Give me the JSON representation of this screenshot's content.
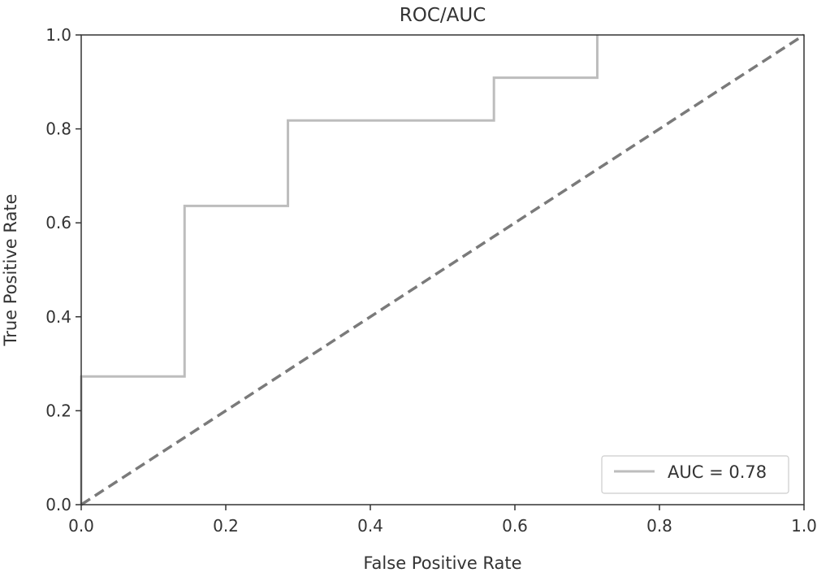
{
  "chart_data": {
    "type": "line",
    "title": "ROC/AUC",
    "xlabel": "False Positive Rate",
    "ylabel": "True Positive Rate",
    "xlim": [
      0,
      1
    ],
    "ylim": [
      0,
      1
    ],
    "xticks": [
      "0.0",
      "0.2",
      "0.4",
      "0.6",
      "0.8",
      "1.0"
    ],
    "yticks": [
      "0.0",
      "0.2",
      "0.4",
      "0.6",
      "0.8",
      "1.0"
    ],
    "grid": false,
    "legend_position": "bottom-right",
    "series": [
      {
        "name": "AUC = 0.78",
        "style": "solid",
        "color": "#bdbdbd",
        "x": [
          0.0,
          0.0,
          0.143,
          0.143,
          0.286,
          0.286,
          0.571,
          0.571,
          0.714,
          0.714
        ],
        "y": [
          0.0,
          0.273,
          0.273,
          0.636,
          0.636,
          0.818,
          0.818,
          0.909,
          0.909,
          1.0
        ]
      },
      {
        "style": "dashed",
        "color": "#7a7a7a",
        "x": [
          0.0,
          1.0
        ],
        "y": [
          0.0,
          1.0
        ]
      }
    ]
  }
}
